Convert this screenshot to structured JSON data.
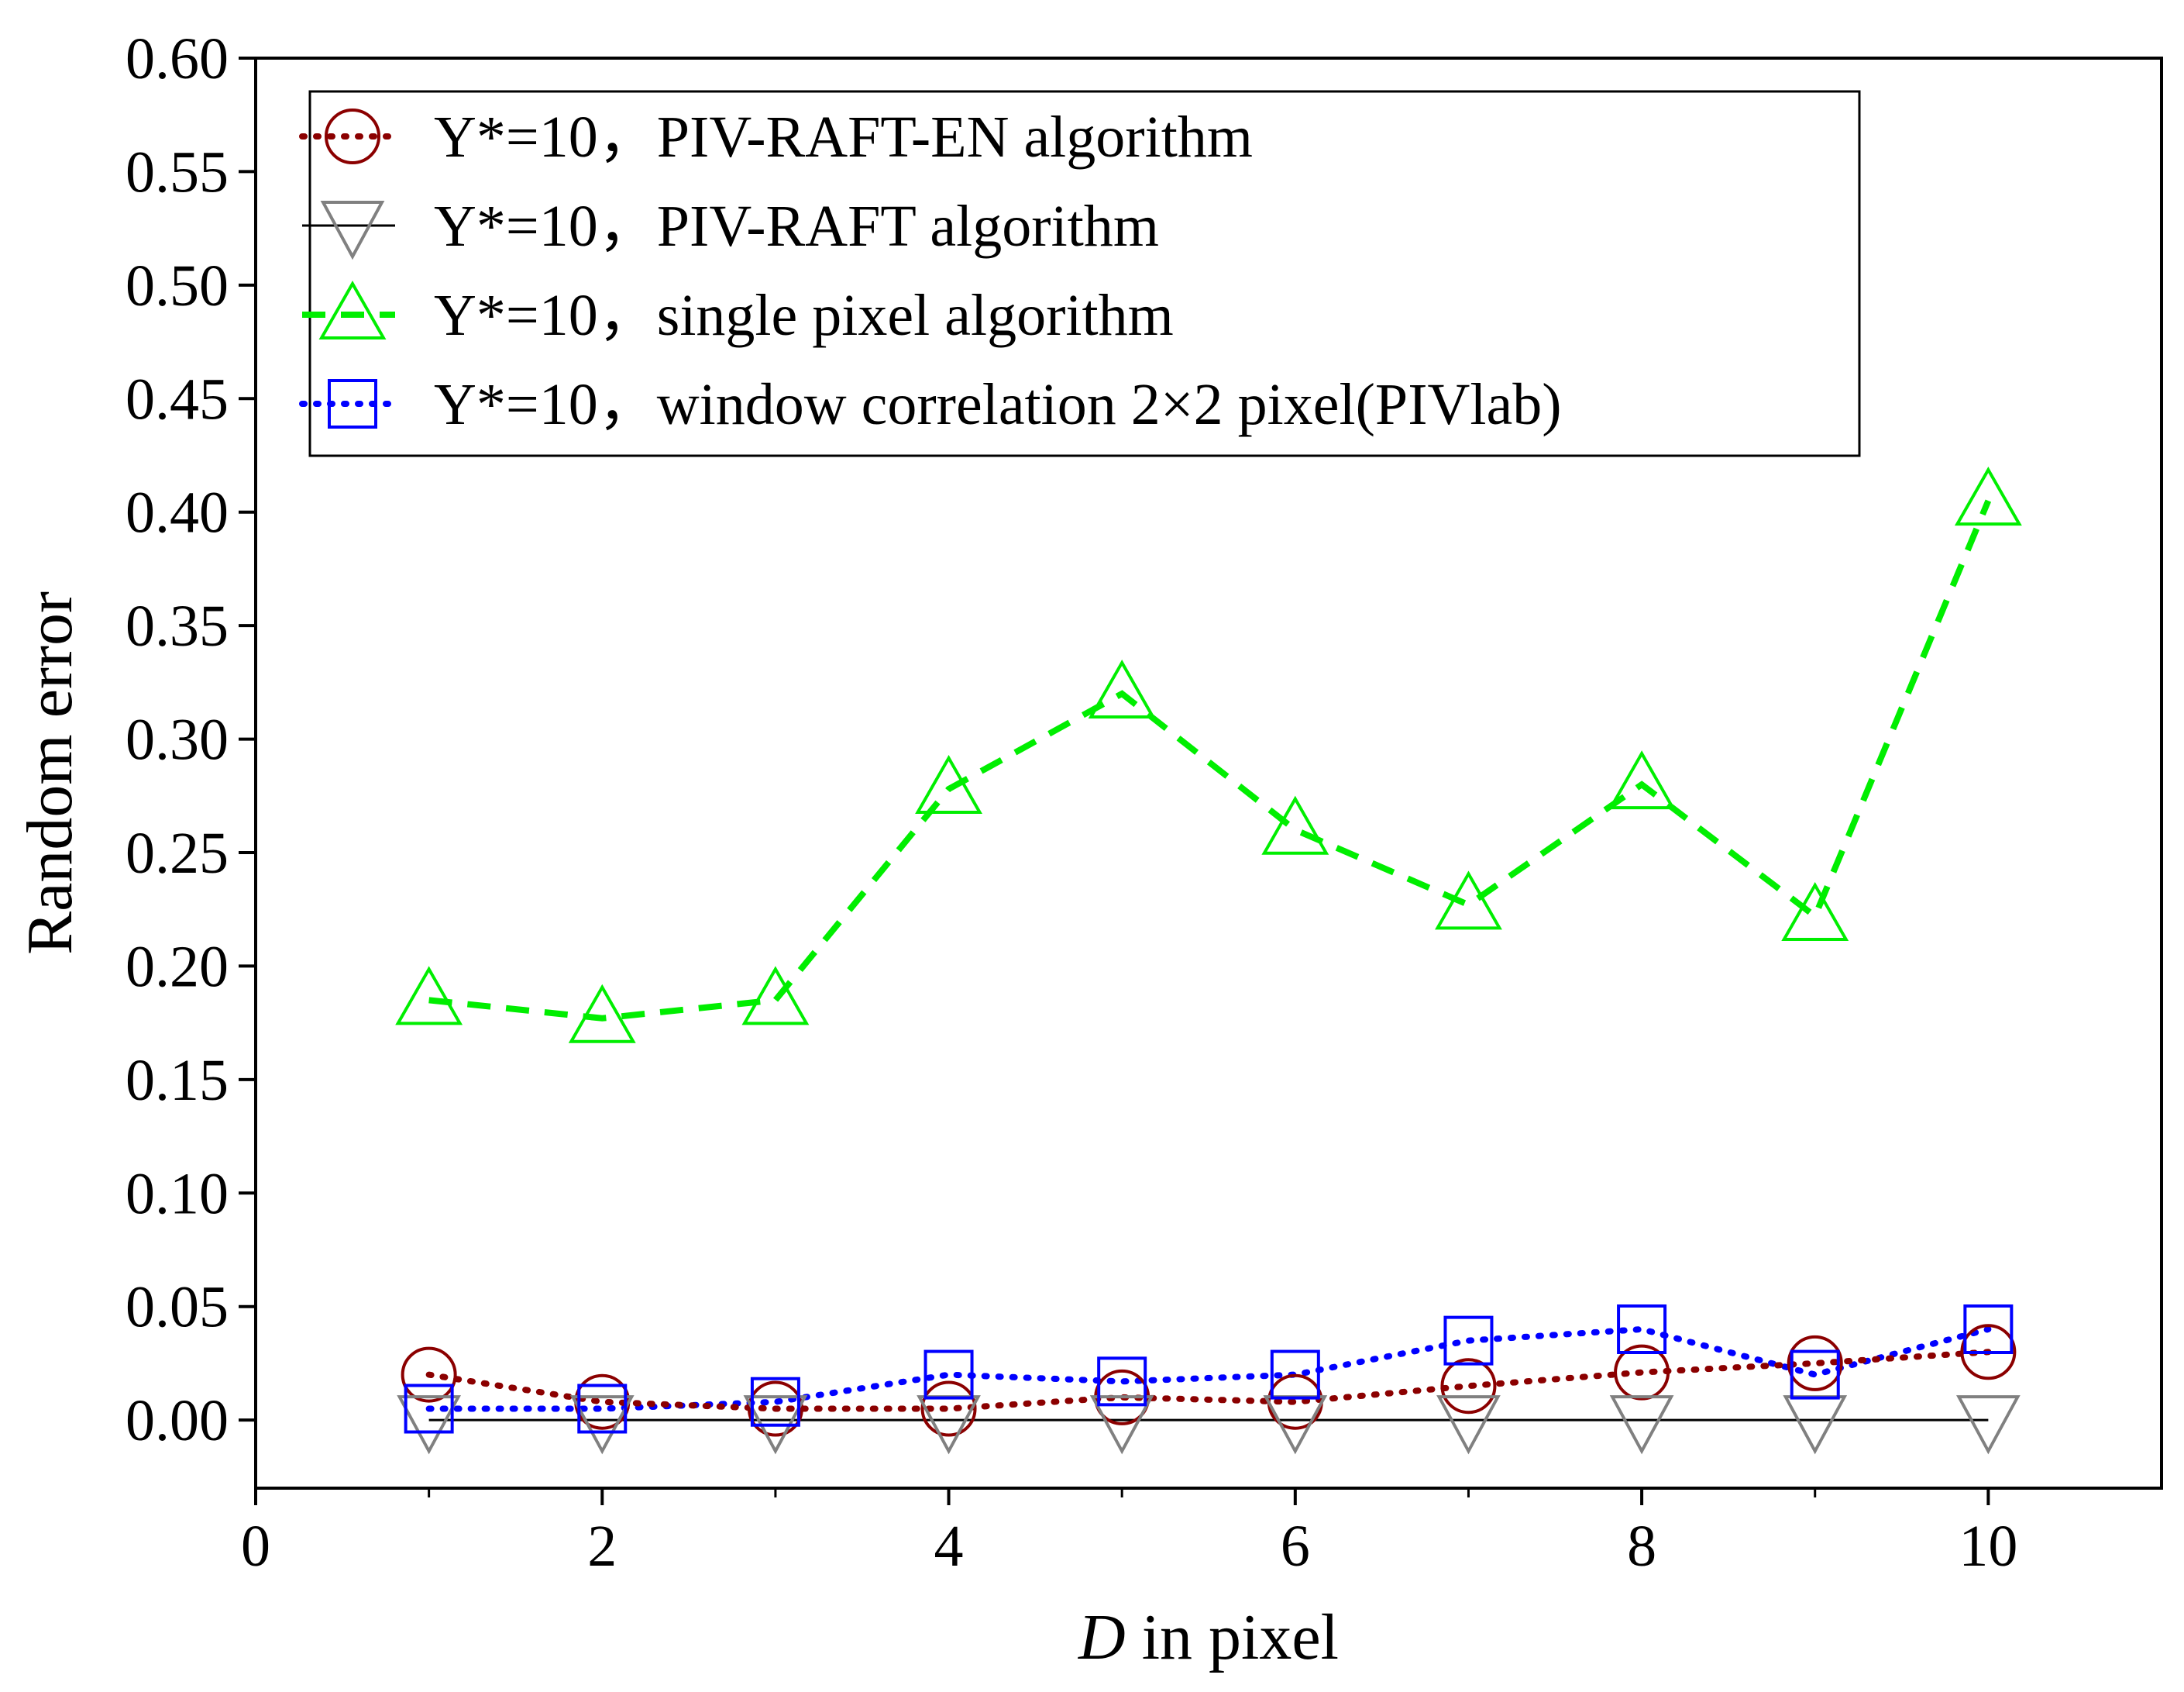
{
  "chart_data": {
    "type": "line",
    "title": "",
    "xlabel_italic": "D",
    "xlabel_rest": " in pixel",
    "ylabel": "Random error",
    "xlim": [
      0,
      11
    ],
    "ylim": [
      -0.03,
      0.6
    ],
    "x_ticks": [
      0,
      2,
      4,
      6,
      8,
      10
    ],
    "x_tick_labels": [
      "0",
      "2",
      "4",
      "6",
      "8",
      "10"
    ],
    "y_ticks": [
      0.0,
      0.05,
      0.1,
      0.15,
      0.2,
      0.25,
      0.3,
      0.35,
      0.4,
      0.45,
      0.5,
      0.55,
      0.6
    ],
    "y_tick_labels": [
      "0.00",
      "0.05",
      "0.10",
      "0.15",
      "0.20",
      "0.25",
      "0.30",
      "0.35",
      "0.40",
      "0.45",
      "0.50",
      "0.55",
      "0.60"
    ],
    "legend_position": "top-left",
    "x": [
      1,
      2,
      3,
      4,
      5,
      6,
      7,
      8,
      9,
      10
    ],
    "series": [
      {
        "name": "Y*=10，PIV-RAFT-EN algorithm",
        "color": "#8b0000",
        "line_style": "dotted",
        "marker": "circle",
        "values": [
          0.02,
          0.008,
          0.005,
          0.005,
          0.01,
          0.008,
          0.015,
          0.021,
          0.025,
          0.03
        ]
      },
      {
        "name": "Y*=10，PIV-RAFT algorithm",
        "color": "#808080",
        "line_color": "#000000",
        "line_style": "solid",
        "marker": "triangle-down",
        "values": [
          0.0,
          0.0,
          0.0,
          0.0,
          0.0,
          0.0,
          0.0,
          0.0,
          0.0,
          0.0
        ]
      },
      {
        "name": "Y*=10，single pixel algorithm",
        "color": "#00ee00",
        "line_style": "dashed",
        "marker": "triangle-up",
        "values": [
          0.185,
          0.177,
          0.185,
          0.278,
          0.32,
          0.26,
          0.227,
          0.28,
          0.222,
          0.405
        ]
      },
      {
        "name": "Y*=10，window correlation 2×2 pixel(PIVlab)",
        "color": "#0000ff",
        "line_style": "dotted",
        "marker": "square",
        "values": [
          0.005,
          0.005,
          0.008,
          0.02,
          0.017,
          0.02,
          0.035,
          0.04,
          0.02,
          0.04
        ]
      }
    ]
  }
}
